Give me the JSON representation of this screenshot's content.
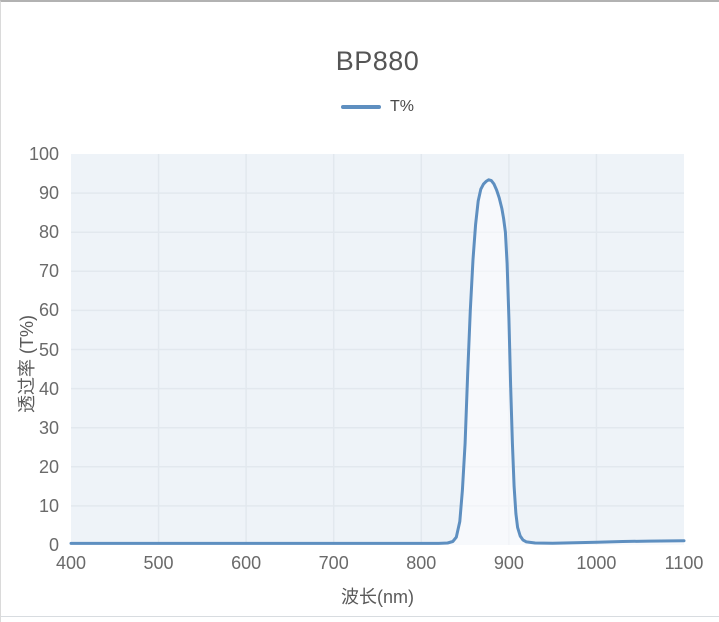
{
  "chart_data": {
    "type": "line",
    "title": "BP880",
    "xlabel": "波长(nm)",
    "ylabel": "透过率 (T%)",
    "xlim": [
      400,
      1100
    ],
    "ylim": [
      0,
      100
    ],
    "x_ticks": [
      400,
      500,
      600,
      700,
      800,
      900,
      1000,
      1100
    ],
    "y_ticks": [
      0,
      10,
      20,
      30,
      40,
      50,
      60,
      70,
      80,
      90,
      100
    ],
    "grid": true,
    "legend_position": "top-center",
    "series": [
      {
        "name": "T%",
        "color": "#5e8fc0",
        "points": [
          [
            400,
            0.4
          ],
          [
            450,
            0.4
          ],
          [
            500,
            0.4
          ],
          [
            550,
            0.4
          ],
          [
            600,
            0.4
          ],
          [
            650,
            0.4
          ],
          [
            700,
            0.4
          ],
          [
            750,
            0.4
          ],
          [
            800,
            0.4
          ],
          [
            820,
            0.4
          ],
          [
            830,
            0.5
          ],
          [
            836,
            0.9
          ],
          [
            840,
            2
          ],
          [
            844,
            6
          ],
          [
            847,
            14
          ],
          [
            850,
            26
          ],
          [
            853,
            44
          ],
          [
            856,
            60
          ],
          [
            859,
            73
          ],
          [
            862,
            82
          ],
          [
            865,
            88
          ],
          [
            868,
            91
          ],
          [
            871,
            92.3
          ],
          [
            874,
            93
          ],
          [
            877,
            93.4
          ],
          [
            880,
            93.2
          ],
          [
            883,
            92.3
          ],
          [
            886,
            90.8
          ],
          [
            889,
            88.8
          ],
          [
            892,
            86
          ],
          [
            894,
            83.5
          ],
          [
            896,
            80
          ],
          [
            898,
            72
          ],
          [
            900,
            58
          ],
          [
            902,
            41
          ],
          [
            904,
            26
          ],
          [
            906,
            15
          ],
          [
            908,
            8
          ],
          [
            910,
            4.5
          ],
          [
            913,
            2.3
          ],
          [
            916,
            1.3
          ],
          [
            920,
            0.8
          ],
          [
            930,
            0.5
          ],
          [
            950,
            0.45
          ],
          [
            975,
            0.55
          ],
          [
            1000,
            0.7
          ],
          [
            1030,
            0.9
          ],
          [
            1060,
            1.0
          ],
          [
            1100,
            1.1
          ]
        ]
      }
    ],
    "colors": {
      "plot_bg": "#eef3f8",
      "gridline": "#e2e8ee",
      "line": "#5e8fc0",
      "band_fill": "rgba(255,255,255,0.5)",
      "title_text": "#555555",
      "tick_text": "#6a6a6a"
    }
  }
}
